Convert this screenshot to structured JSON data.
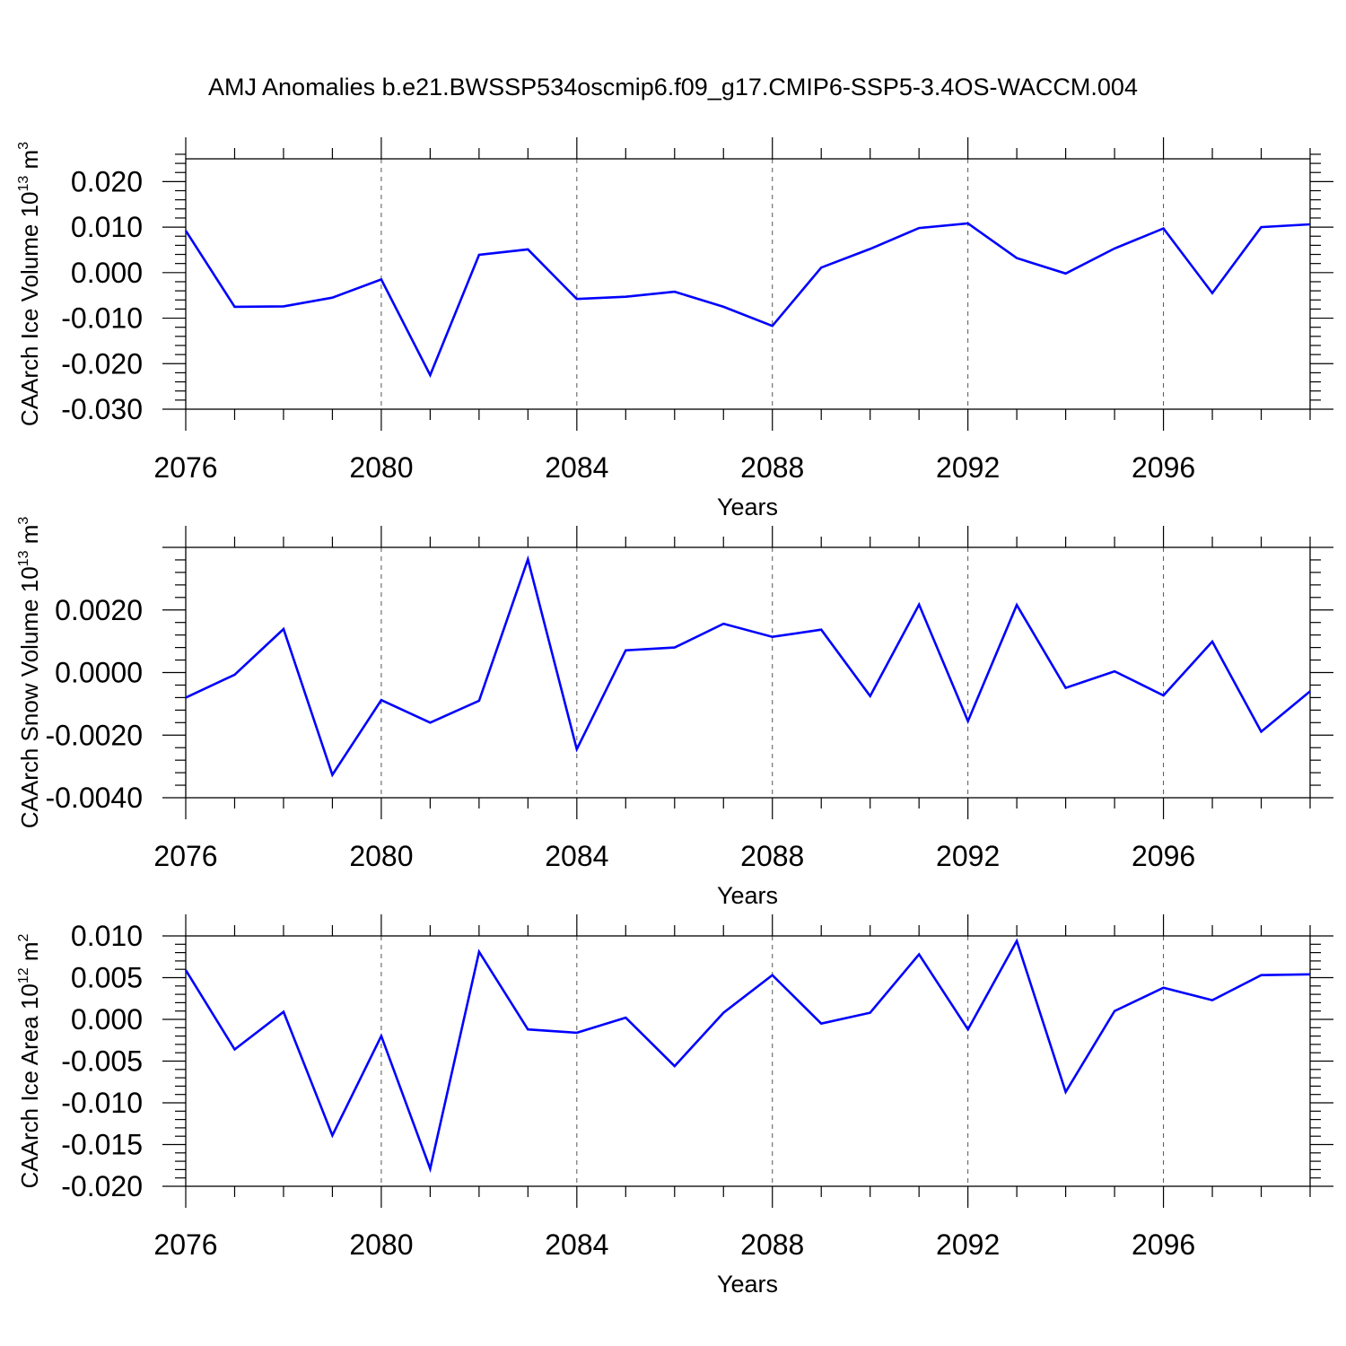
{
  "figure": {
    "title": "AMJ Anomalies b.e21.BWSSP534oscmip6.f09_g17.CMIP6-SSP5-3.4OS-WACCM.004",
    "line_color": "#0000ff",
    "axis_color": "#000000",
    "grid_color": "#555555"
  },
  "chart_data": [
    {
      "type": "line",
      "title": "",
      "xlabel": "Years",
      "ylabel_parts": {
        "base": "CAArch Ice Volume 10",
        "exp1": "13",
        "mid": " m",
        "exp2": "3"
      },
      "xlim": [
        2076,
        2099
      ],
      "ylim": [
        -0.03,
        0.025
      ],
      "grid": "dashed vertical at major x ticks",
      "x_ticks": [
        2076,
        2080,
        2084,
        2088,
        2092,
        2096
      ],
      "x_tick_labels": [
        "2076",
        "2080",
        "2084",
        "2088",
        "2092",
        "2096"
      ],
      "y_ticks": [
        -0.03,
        -0.02,
        -0.01,
        0.0,
        0.01,
        0.02
      ],
      "y_tick_labels": [
        "-0.030",
        "-0.020",
        "-0.010",
        "0.000",
        "0.010",
        "0.020"
      ],
      "x": [
        2076,
        2077,
        2078,
        2079,
        2080,
        2081,
        2082,
        2083,
        2084,
        2085,
        2086,
        2087,
        2088,
        2089,
        2090,
        2091,
        2092,
        2093,
        2094,
        2095,
        2096,
        2097,
        2098,
        2099
      ],
      "values": [
        0.0092,
        -0.0075,
        -0.0074,
        -0.0055,
        -0.0015,
        -0.0225,
        0.0039,
        0.0051,
        -0.0058,
        -0.0053,
        -0.0042,
        -0.0075,
        -0.0117,
        0.0011,
        0.0052,
        0.0098,
        0.0108,
        0.0032,
        -0.0002,
        0.0053,
        0.0097,
        -0.0045,
        0.01,
        0.0106
      ]
    },
    {
      "type": "line",
      "title": "",
      "xlabel": "Years",
      "ylabel_parts": {
        "base": "CAArch Snow Volume 10",
        "exp1": "13",
        "mid": " m",
        "exp2": "3"
      },
      "xlim": [
        2076,
        2099
      ],
      "ylim": [
        -0.004,
        0.004
      ],
      "grid": "dashed vertical at major x ticks",
      "x_ticks": [
        2076,
        2080,
        2084,
        2088,
        2092,
        2096
      ],
      "x_tick_labels": [
        "2076",
        "2080",
        "2084",
        "2088",
        "2092",
        "2096"
      ],
      "y_ticks": [
        -0.004,
        -0.002,
        0.0,
        0.002
      ],
      "y_tick_labels": [
        "-0.0040",
        "-0.0020",
        "0.0000",
        "0.0020"
      ],
      "x": [
        2076,
        2077,
        2078,
        2079,
        2080,
        2081,
        2082,
        2083,
        2084,
        2085,
        2086,
        2087,
        2088,
        2089,
        2090,
        2091,
        2092,
        2093,
        2094,
        2095,
        2096,
        2097,
        2098,
        2099
      ],
      "values": [
        -0.0008,
        -7e-05,
        0.00139,
        -0.00327,
        -0.00088,
        -0.0016,
        -0.0009,
        0.00362,
        -0.00245,
        0.00071,
        0.0008,
        0.00156,
        0.00114,
        0.00137,
        -0.00075,
        0.00217,
        -0.00155,
        0.00216,
        -0.00049,
        4e-05,
        -0.00073,
        0.00099,
        -0.00189,
        -0.0006
      ]
    },
    {
      "type": "line",
      "title": "",
      "xlabel": "Years",
      "ylabel_parts": {
        "base": "CAArch Ice Area 10",
        "exp1": "12",
        "mid": " m",
        "exp2": "2"
      },
      "xlim": [
        2076,
        2099
      ],
      "ylim": [
        -0.02,
        0.01
      ],
      "grid": "dashed vertical at major x ticks",
      "x_ticks": [
        2076,
        2080,
        2084,
        2088,
        2092,
        2096
      ],
      "x_tick_labels": [
        "2076",
        "2080",
        "2084",
        "2088",
        "2092",
        "2096"
      ],
      "y_ticks": [
        -0.02,
        -0.015,
        -0.01,
        -0.005,
        0.0,
        0.005,
        0.01
      ],
      "y_tick_labels": [
        "-0.020",
        "-0.015",
        "-0.010",
        "-0.005",
        "0.000",
        "0.005",
        "0.010"
      ],
      "x": [
        2076,
        2077,
        2078,
        2079,
        2080,
        2081,
        2082,
        2083,
        2084,
        2085,
        2086,
        2087,
        2088,
        2089,
        2090,
        2091,
        2092,
        2093,
        2094,
        2095,
        2096,
        2097,
        2098,
        2099
      ],
      "values": [
        0.0059,
        -0.0036,
        0.0009,
        -0.0139,
        -0.002,
        -0.0179,
        0.0081,
        -0.0012,
        -0.0016,
        0.0002,
        -0.0056,
        0.0008,
        0.0053,
        -0.0005,
        0.0008,
        0.0078,
        -0.0012,
        0.0094,
        -0.0087,
        0.001,
        0.0038,
        0.0023,
        0.0053,
        0.0054
      ]
    }
  ]
}
